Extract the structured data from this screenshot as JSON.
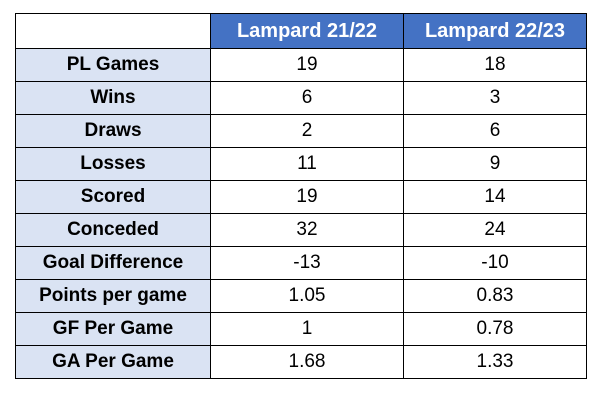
{
  "chart_data": {
    "type": "table",
    "columns": [
      "Lampard 21/22",
      "Lampard 22/23"
    ],
    "rows": [
      {
        "label": "PL Games",
        "values": [
          "19",
          "18"
        ]
      },
      {
        "label": "Wins",
        "values": [
          "6",
          "3"
        ]
      },
      {
        "label": "Draws",
        "values": [
          "2",
          "6"
        ]
      },
      {
        "label": "Losses",
        "values": [
          "11",
          "9"
        ]
      },
      {
        "label": "Scored",
        "values": [
          "19",
          "14"
        ]
      },
      {
        "label": "Conceded",
        "values": [
          "32",
          "24"
        ]
      },
      {
        "label": "Goal Difference",
        "values": [
          "-13",
          "-10"
        ]
      },
      {
        "label": "Points per game",
        "values": [
          "1.05",
          "0.83"
        ]
      },
      {
        "label": "GF Per Game",
        "values": [
          "1",
          "0.78"
        ]
      },
      {
        "label": "GA Per Game",
        "values": [
          "1.68",
          "1.33"
        ]
      }
    ],
    "colors": {
      "header_bg": "#4472c4",
      "header_text": "#ffffff",
      "row_label_bg": "#dae3f3",
      "cell_bg": "#ffffff",
      "border": "#000000"
    }
  }
}
